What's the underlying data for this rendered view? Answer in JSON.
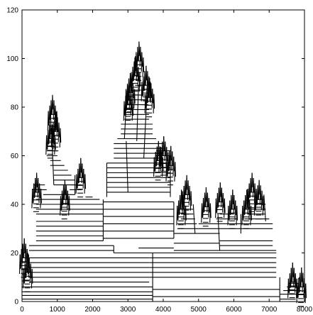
{
  "chart_data": {
    "type": "line",
    "title": "",
    "xlabel": "",
    "ylabel": "",
    "xlim": [
      0,
      8000
    ],
    "ylim": [
      0,
      120
    ],
    "grid": false,
    "xticks": [
      0,
      1000,
      2000,
      3000,
      4000,
      5000,
      6000,
      7000,
      8000
    ],
    "yticks": [
      0,
      20,
      40,
      60,
      80,
      100,
      120
    ],
    "series": [
      {
        "style": "horizontal-segments",
        "segments": [
          [
            0,
            1,
            3700,
            1
          ],
          [
            0,
            2.5,
            3700,
            2.5
          ],
          [
            0,
            4,
            3700,
            4
          ],
          [
            0,
            6,
            3700,
            6
          ],
          [
            3700,
            2,
            7300,
            2
          ],
          [
            3700,
            5,
            7300,
            5
          ],
          [
            7300,
            1,
            7750,
            1
          ],
          [
            200,
            8,
            3600,
            8
          ],
          [
            200,
            10,
            3600,
            10
          ],
          [
            200,
            12,
            3600,
            12
          ],
          [
            200,
            14,
            3600,
            14
          ],
          [
            200,
            16,
            3600,
            16
          ],
          [
            200,
            18,
            3600,
            18
          ],
          [
            3600,
            10,
            7200,
            10
          ],
          [
            3600,
            12,
            7200,
            12
          ],
          [
            3600,
            14,
            7200,
            14
          ],
          [
            3600,
            16,
            7200,
            16
          ],
          [
            3600,
            18,
            7200,
            18
          ],
          [
            3600,
            20,
            7200,
            20
          ],
          [
            200,
            21,
            2600,
            21
          ],
          [
            2600,
            20,
            3700,
            20
          ],
          [
            200,
            23,
            2600,
            23
          ],
          [
            400,
            25,
            2300,
            25
          ],
          [
            400,
            27,
            2300,
            27
          ],
          [
            400,
            29,
            2300,
            29
          ],
          [
            400,
            31,
            2300,
            31
          ],
          [
            400,
            33,
            2300,
            33
          ],
          [
            2300,
            26,
            4300,
            26
          ],
          [
            2300,
            29,
            4300,
            29
          ],
          [
            2300,
            32,
            4300,
            32
          ],
          [
            2300,
            35,
            4300,
            35
          ],
          [
            2300,
            38,
            4300,
            38
          ],
          [
            2300,
            41,
            4300,
            41
          ],
          [
            400,
            36,
            2300,
            36
          ],
          [
            400,
            38,
            2300,
            38
          ],
          [
            400,
            40,
            2300,
            40
          ],
          [
            400,
            42,
            2200,
            42
          ],
          [
            600,
            44,
            1500,
            44
          ],
          [
            1800,
            43,
            2000,
            43
          ],
          [
            4300,
            28,
            5600,
            28
          ],
          [
            5600,
            25,
            7100,
            25
          ],
          [
            5600,
            23,
            7100,
            23
          ],
          [
            4300,
            24,
            5600,
            24
          ],
          [
            3300,
            22,
            4300,
            22
          ],
          [
            4300,
            21,
            7200,
            21
          ],
          [
            2400,
            45,
            4200,
            45
          ],
          [
            2400,
            47,
            4200,
            47
          ],
          [
            2400,
            49,
            4200,
            49
          ],
          [
            2400,
            51,
            4200,
            51
          ],
          [
            2400,
            53,
            4200,
            53
          ],
          [
            2400,
            55,
            4200,
            55
          ],
          [
            2400,
            57,
            4200,
            57
          ],
          [
            2600,
            59,
            4000,
            59
          ],
          [
            2600,
            61,
            4000,
            61
          ],
          [
            2600,
            63,
            4000,
            63
          ],
          [
            2600,
            65,
            4000,
            65
          ],
          [
            2700,
            67,
            3800,
            67
          ],
          [
            2800,
            69,
            3700,
            69
          ],
          [
            2800,
            71,
            3700,
            71
          ],
          [
            2800,
            73,
            3700,
            73
          ],
          [
            2900,
            75,
            3600,
            75
          ],
          [
            2900,
            77,
            3600,
            77
          ],
          [
            2900,
            79,
            3600,
            79
          ],
          [
            3000,
            81,
            3500,
            81
          ],
          [
            3000,
            83,
            3500,
            83
          ],
          [
            3100,
            85,
            3500,
            85
          ],
          [
            3100,
            87,
            3500,
            87
          ],
          [
            3200,
            89,
            3500,
            89
          ],
          [
            900,
            48,
            1500,
            48
          ],
          [
            900,
            50,
            1500,
            50
          ],
          [
            900,
            52,
            1400,
            52
          ],
          [
            900,
            54,
            1300,
            54
          ],
          [
            800,
            56,
            1200,
            56
          ],
          [
            800,
            58,
            1100,
            58
          ],
          [
            700,
            60,
            1000,
            60
          ],
          [
            700,
            62,
            1000,
            62
          ],
          [
            700,
            64,
            950,
            64
          ],
          [
            750,
            66,
            950,
            66
          ],
          [
            300,
            46,
            700,
            46
          ],
          [
            350,
            48,
            650,
            48
          ],
          [
            1350,
            46,
            1700,
            46
          ],
          [
            1400,
            48,
            1700,
            48
          ],
          [
            3800,
            60,
            4200,
            60
          ],
          [
            3800,
            62,
            4200,
            62
          ],
          [
            4400,
            30,
            5000,
            30
          ],
          [
            4400,
            32,
            4950,
            32
          ],
          [
            4500,
            34,
            4900,
            34
          ],
          [
            4500,
            36,
            4850,
            36
          ],
          [
            4600,
            38,
            4850,
            38
          ],
          [
            5000,
            30,
            6200,
            30
          ],
          [
            5000,
            32,
            6200,
            32
          ],
          [
            5500,
            34,
            6100,
            34
          ],
          [
            5600,
            36,
            6000,
            36
          ],
          [
            6200,
            30,
            7100,
            30
          ],
          [
            6200,
            32,
            7100,
            32
          ],
          [
            6300,
            34,
            7000,
            34
          ],
          [
            6400,
            36,
            6900,
            36
          ],
          [
            6500,
            38,
            6900,
            38
          ],
          [
            6600,
            40,
            6900,
            40
          ],
          [
            6600,
            42,
            6850,
            42
          ],
          [
            7300,
            3,
            8000,
            3
          ],
          [
            7400,
            4.5,
            7900,
            4.5
          ],
          [
            7500,
            6,
            7900,
            6
          ],
          [
            7550,
            7.5,
            7850,
            7.5
          ],
          [
            0,
            8.5,
            200,
            8.5
          ],
          [
            0,
            11,
            150,
            11
          ],
          [
            0,
            13.5,
            120,
            13.5
          ],
          [
            0,
            16,
            100,
            16
          ]
        ],
        "vertical": [
          [
            3700,
            0,
            3700,
            20
          ],
          [
            2600,
            20,
            2600,
            23
          ],
          [
            2300,
            25,
            2300,
            42
          ],
          [
            4300,
            26,
            4300,
            41
          ],
          [
            2400,
            43,
            2400,
            57
          ],
          [
            4200,
            43,
            4200,
            60
          ],
          [
            3000,
            45,
            2950,
            66
          ],
          [
            3450,
            59,
            3550,
            89
          ],
          [
            3250,
            66,
            3300,
            89
          ],
          [
            2900,
            67,
            2950,
            81
          ],
          [
            900,
            48,
            850,
            66
          ],
          [
            1500,
            44,
            1500,
            52
          ],
          [
            5600,
            21,
            5550,
            36
          ],
          [
            6200,
            28,
            6200,
            36
          ],
          [
            4900,
            28,
            4850,
            40
          ],
          [
            6900,
            33,
            6850,
            44
          ],
          [
            7300,
            0,
            7300,
            10
          ],
          [
            7800,
            2,
            7850,
            10
          ]
        ],
        "peaks": [
          [
            3200,
            101
          ],
          [
            3500,
            97
          ],
          [
            3050,
            94
          ],
          [
            3300,
            107
          ],
          [
            3600,
            92
          ],
          [
            3000,
            89
          ],
          [
            850,
            85
          ],
          [
            800,
            75
          ],
          [
            950,
            78
          ],
          [
            1650,
            59
          ],
          [
            400,
            53
          ],
          [
            1200,
            50
          ],
          [
            4000,
            68
          ],
          [
            3850,
            66
          ],
          [
            4200,
            64
          ],
          [
            4650,
            52
          ],
          [
            4500,
            46
          ],
          [
            5200,
            47
          ],
          [
            5600,
            49
          ],
          [
            5950,
            46
          ],
          [
            6500,
            53
          ],
          [
            6700,
            50
          ],
          [
            6350,
            46
          ],
          [
            7650,
            16
          ],
          [
            7900,
            14
          ],
          [
            50,
            26
          ],
          [
            150,
            20
          ]
        ]
      }
    ]
  }
}
